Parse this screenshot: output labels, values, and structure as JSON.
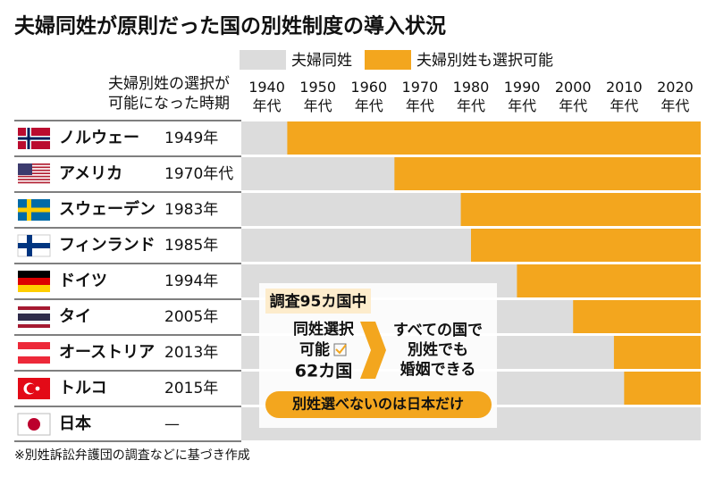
{
  "chart_data": {
    "type": "timeline",
    "title": "夫婦同姓が原則だった国の別姓制度の導入状況",
    "series": [
      {
        "name": "夫婦同姓",
        "color": "#dcdcdc"
      },
      {
        "name": "夫婦別姓も選択可能",
        "color": "#f3a61e"
      }
    ],
    "row_header": [
      "夫婦別姓の選択が",
      "可能になった時期"
    ],
    "categories": [
      "ノルウェー",
      "アメリカ",
      "スウェーデン",
      "フィンランド",
      "ドイツ",
      "タイ",
      "オーストリア",
      "トルコ",
      "日本"
    ],
    "values": [
      1949,
      1970,
      1983,
      1985,
      1994,
      2005,
      2013,
      2015,
      null
    ],
    "value_labels": [
      "1949年",
      "1970年代",
      "1983年",
      "1985年",
      "1994年",
      "2005年",
      "2013年",
      "2015年",
      "—"
    ],
    "xlim": [
      1940,
      2030
    ],
    "xticks": [
      {
        "value": 1940,
        "label": "1940年代"
      },
      {
        "value": 1950,
        "label": "1950年代"
      },
      {
        "value": 1960,
        "label": "1960年代"
      },
      {
        "value": 1970,
        "label": "1970年代"
      },
      {
        "value": 1980,
        "label": "1980年代"
      },
      {
        "value": 1990,
        "label": "1990年代"
      },
      {
        "value": 2000,
        "label": "2000年代"
      },
      {
        "value": 2010,
        "label": "2010年代"
      },
      {
        "value": 2020,
        "label": "2020年代"
      }
    ],
    "annotation": {
      "header": "調査95カ国中",
      "left_lines": [
        "同姓選択",
        "可能"
      ],
      "left_count": "62カ国",
      "right_lines": [
        "すべての国で",
        "別姓でも",
        "婚姻できる"
      ],
      "banner": "別姓選べないのは日本だけ"
    },
    "note": "※別姓訴訟弁護団の調査などに基づき作成"
  }
}
